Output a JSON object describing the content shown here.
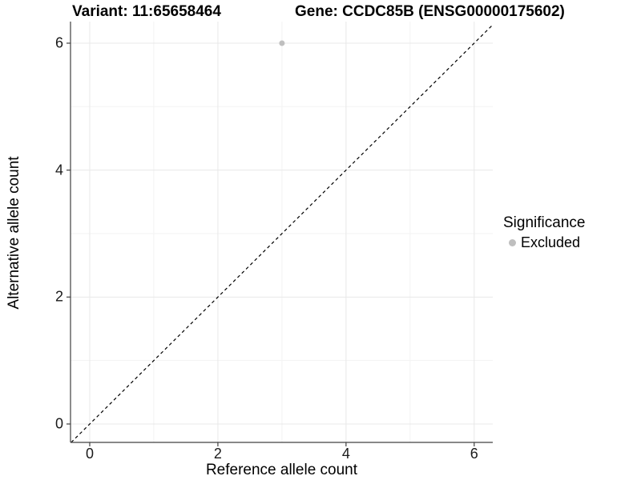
{
  "chart_data": {
    "type": "scatter",
    "title_left": "Variant: 11:65658464",
    "title_right": "Gene: CCDC85B (ENSG00000175602)",
    "xlabel": "Reference allele count",
    "ylabel": "Alternative allele count",
    "x_axis": {
      "ticks": [
        0,
        2,
        4,
        6
      ],
      "minor": [
        1,
        3,
        5
      ],
      "range": [
        -0.3,
        6.29
      ]
    },
    "y_axis": {
      "ticks": [
        0,
        2,
        4,
        6
      ],
      "minor": [
        1,
        3,
        5
      ],
      "range": [
        -0.29,
        6.34
      ]
    },
    "grid": true,
    "points": [
      {
        "x": 3,
        "y": 6,
        "series": "Excluded"
      }
    ],
    "identity_line": {
      "x1": -0.29,
      "y1": -0.29,
      "x2": 6.29,
      "y2": 6.29,
      "style": "dashed",
      "color": "#000000"
    },
    "legend": {
      "title": "Significance",
      "position": "right",
      "items": [
        {
          "label": "Excluded",
          "color": "#bfbfbf"
        }
      ]
    },
    "colors": {
      "grid_major": "#e8e8e8",
      "grid_minor": "#f3f3f3",
      "axis_line": "#404040",
      "tick_text": "#1a1a1a",
      "point": "#bfbfbf"
    }
  }
}
